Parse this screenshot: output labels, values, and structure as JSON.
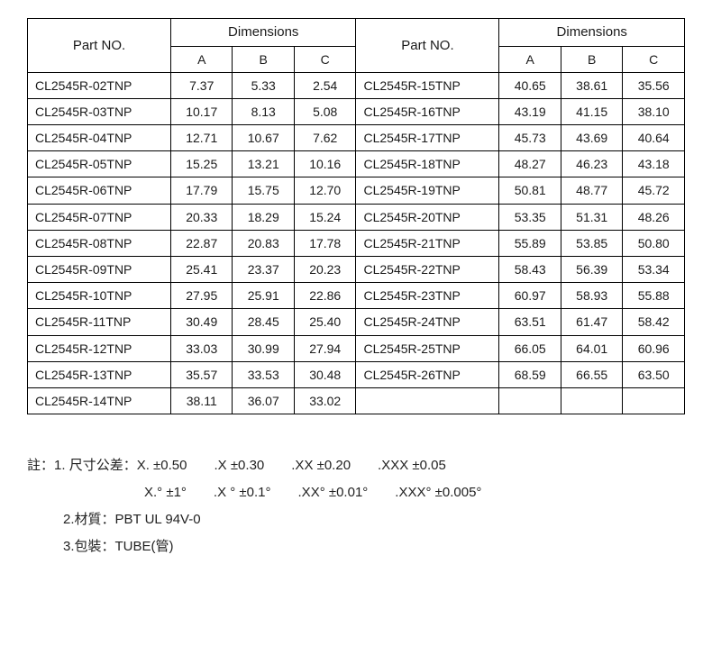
{
  "table": {
    "headers": {
      "part_no": "Part NO.",
      "dimensions": "Dimensions",
      "col_a": "A",
      "col_b": "B",
      "col_c": "C"
    },
    "border_color": "#000000",
    "background_color": "#ffffff",
    "font_size_header": 15,
    "font_size_cell": 14,
    "rows_left": [
      {
        "part": "CL2545R-02TNP",
        "a": "7.37",
        "b": "5.33",
        "c": "2.54"
      },
      {
        "part": "CL2545R-03TNP",
        "a": "10.17",
        "b": "8.13",
        "c": "5.08"
      },
      {
        "part": "CL2545R-04TNP",
        "a": "12.71",
        "b": "10.67",
        "c": "7.62"
      },
      {
        "part": "CL2545R-05TNP",
        "a": "15.25",
        "b": "13.21",
        "c": "10.16"
      },
      {
        "part": "CL2545R-06TNP",
        "a": "17.79",
        "b": "15.75",
        "c": "12.70"
      },
      {
        "part": "CL2545R-07TNP",
        "a": "20.33",
        "b": "18.29",
        "c": "15.24"
      },
      {
        "part": "CL2545R-08TNP",
        "a": "22.87",
        "b": "20.83",
        "c": "17.78"
      },
      {
        "part": "CL2545R-09TNP",
        "a": "25.41",
        "b": "23.37",
        "c": "20.23"
      },
      {
        "part": "CL2545R-10TNP",
        "a": "27.95",
        "b": "25.91",
        "c": "22.86"
      },
      {
        "part": "CL2545R-11TNP",
        "a": "30.49",
        "b": "28.45",
        "c": "25.40"
      },
      {
        "part": "CL2545R-12TNP",
        "a": "33.03",
        "b": "30.99",
        "c": "27.94"
      },
      {
        "part": "CL2545R-13TNP",
        "a": "35.57",
        "b": "33.53",
        "c": "30.48"
      },
      {
        "part": "CL2545R-14TNP",
        "a": "38.11",
        "b": "36.07",
        "c": "33.02"
      }
    ],
    "rows_right": [
      {
        "part": "CL2545R-15TNP",
        "a": "40.65",
        "b": "38.61",
        "c": "35.56"
      },
      {
        "part": "CL2545R-16TNP",
        "a": "43.19",
        "b": "41.15",
        "c": "38.10"
      },
      {
        "part": "CL2545R-17TNP",
        "a": "45.73",
        "b": "43.69",
        "c": "40.64"
      },
      {
        "part": "CL2545R-18TNP",
        "a": "48.27",
        "b": "46.23",
        "c": "43.18"
      },
      {
        "part": "CL2545R-19TNP",
        "a": "50.81",
        "b": "48.77",
        "c": "45.72"
      },
      {
        "part": "CL2545R-20TNP",
        "a": "53.35",
        "b": "51.31",
        "c": "48.26"
      },
      {
        "part": "CL2545R-21TNP",
        "a": "55.89",
        "b": "53.85",
        "c": "50.80"
      },
      {
        "part": "CL2545R-22TNP",
        "a": "58.43",
        "b": "56.39",
        "c": "53.34"
      },
      {
        "part": "CL2545R-23TNP",
        "a": "60.97",
        "b": "58.93",
        "c": "55.88"
      },
      {
        "part": "CL2545R-24TNP",
        "a": "63.51",
        "b": "61.47",
        "c": "58.42"
      },
      {
        "part": "CL2545R-25TNP",
        "a": "66.05",
        "b": "64.01",
        "c": "60.96"
      },
      {
        "part": "CL2545R-26TNP",
        "a": "68.59",
        "b": "66.55",
        "c": "63.50"
      },
      {
        "part": "",
        "a": "",
        "b": "",
        "c": ""
      }
    ]
  },
  "notes": {
    "prefix": "註：",
    "line1_label": "1. 尺寸公差：",
    "tolerances_linear": [
      "X. ±0.50",
      ".X ±0.30",
      ".XX ±0.20",
      ".XXX ±0.05"
    ],
    "tolerances_angular": [
      "X.° ±1°",
      ".X ° ±0.1°",
      ".XX° ±0.01°",
      ".XXX° ±0.005°"
    ],
    "line2": "2.材質：PBT UL 94V-0",
    "line3": "3.包裝：TUBE(管)"
  }
}
